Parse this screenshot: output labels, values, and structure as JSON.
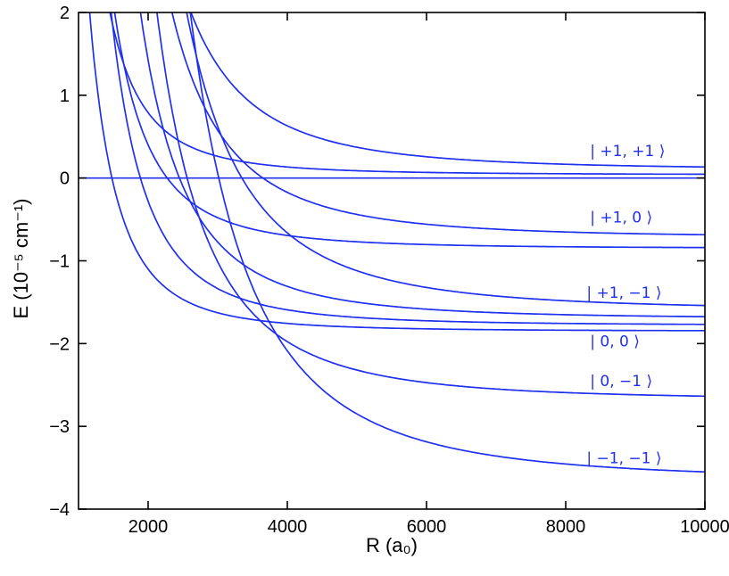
{
  "chart_data": {
    "type": "line",
    "title": "",
    "xlabel": "R (a₀)",
    "ylabel": "E (10⁻⁵ cm⁻¹)",
    "xlim": [
      1000,
      10000
    ],
    "ylim": [
      -4,
      2
    ],
    "x_ticks": [
      2000,
      4000,
      6000,
      8000,
      10000
    ],
    "y_ticks": [
      -4,
      -3,
      -2,
      -1,
      0,
      1,
      2
    ],
    "grid": false,
    "line_color": "#2030f0",
    "axis_color": "#000000",
    "curve_model": "E(R) = asymptote + c3/(R/1000)^3 ; E in 1e-5 cm^-1, R in a0",
    "curves": [
      {
        "name": "state-plus1-plus1-a",
        "state": "|+1,+1⟩",
        "asymptote": 0.1,
        "c3": 34
      },
      {
        "name": "state-plus1-plus1-b",
        "state": "|+1,+1⟩",
        "asymptote": 0.04,
        "c3": 6
      },
      {
        "name": "zero-reference-line",
        "state": "E = 0",
        "asymptote": 0.0,
        "c3": 0
      },
      {
        "name": "state-plus1-zero-a",
        "state": "|+1,0⟩",
        "asymptote": -0.72,
        "c3": 35
      },
      {
        "name": "state-plus1-zero-b",
        "state": "|+1,0⟩",
        "asymptote": -0.85,
        "c3": 10
      },
      {
        "name": "state-plus1-minus1-a",
        "state": "|+1,−1⟩",
        "asymptote": -1.6,
        "c3": 60
      },
      {
        "name": "state-plus1-minus1-b",
        "state": "|+1,−1⟩",
        "asymptote": -1.7,
        "c3": 25
      },
      {
        "name": "state-plus1-minus1-c",
        "state": "|+1,−1⟩",
        "asymptote": -1.78,
        "c3": 12
      },
      {
        "name": "state-zero-zero",
        "state": "|0,0⟩",
        "asymptote": -1.85,
        "c3": 6
      },
      {
        "name": "state-zero-minus1",
        "state": "|0,−1⟩",
        "asymptote": -2.68,
        "c3": 45
      },
      {
        "name": "state-minus1-minus1",
        "state": "|−1,−1⟩",
        "asymptote": -3.65,
        "c3": 100
      }
    ],
    "annotations": [
      {
        "text": "| +1, +1 ⟩",
        "x": 8350,
        "y": 0.33
      },
      {
        "text": "| +1, 0 ⟩",
        "x": 8350,
        "y": -0.47
      },
      {
        "text": "| +1, −1 ⟩",
        "x": 8300,
        "y": -1.38
      },
      {
        "text": "| 0, 0 ⟩",
        "x": 8350,
        "y": -1.97
      },
      {
        "text": "| 0, −1 ⟩",
        "x": 8350,
        "y": -2.45
      },
      {
        "text": "| −1, −1 ⟩",
        "x": 8300,
        "y": -3.38
      }
    ]
  }
}
